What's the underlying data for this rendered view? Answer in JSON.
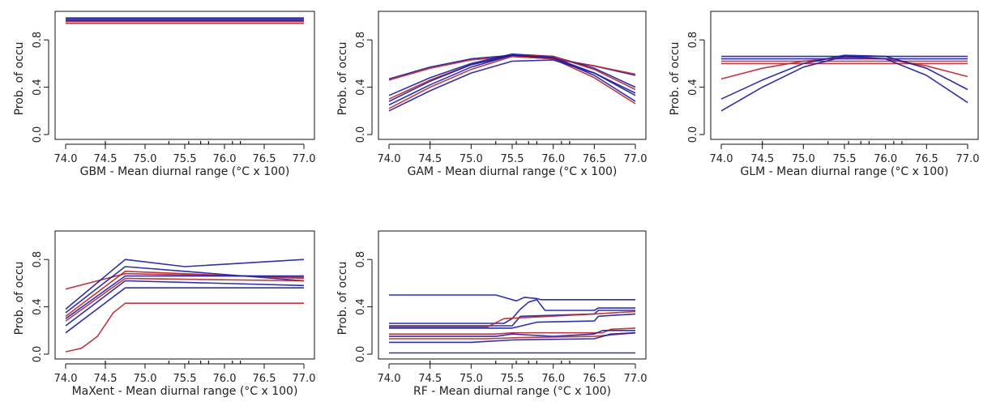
{
  "figure_colors": {
    "blue": "#1a1aa0",
    "red": "#b8242e",
    "axis": "#111111"
  },
  "chart_data": [
    {
      "type": "line",
      "model": "GBM",
      "xlabel": "GBM - Mean diurnal range (°C x 100)",
      "ylabel": "Prob. of occu",
      "xlim": [
        74.0,
        77.0
      ],
      "ylim": [
        0.0,
        1.0
      ],
      "xticks": [
        "74.0",
        "74.5",
        "75.0",
        "75.5",
        "76.0",
        "76.5",
        "77.0"
      ],
      "yticks": [
        "0.0",
        "0.4",
        "0.8"
      ],
      "rug": [
        74.5,
        75.3,
        75.55,
        75.7,
        75.8,
        76.1,
        76.2
      ],
      "series": [
        {
          "color": "red",
          "x": [
            74.0,
            77.0
          ],
          "y": [
            0.94,
            0.94
          ]
        },
        {
          "color": "red",
          "x": [
            74.0,
            77.0
          ],
          "y": [
            0.955,
            0.955
          ]
        },
        {
          "color": "blue",
          "x": [
            74.0,
            77.0
          ],
          "y": [
            0.962,
            0.962
          ]
        },
        {
          "color": "blue",
          "x": [
            74.0,
            77.0
          ],
          "y": [
            0.972,
            0.972
          ]
        },
        {
          "color": "red",
          "x": [
            74.0,
            77.0
          ],
          "y": [
            0.978,
            0.978
          ]
        },
        {
          "color": "blue",
          "x": [
            74.0,
            77.0
          ],
          "y": [
            0.985,
            0.985
          ]
        }
      ]
    },
    {
      "type": "line",
      "model": "GAM",
      "xlabel": "GAM - Mean diurnal range (°C x 100)",
      "ylabel": "Prob. of occu",
      "xlim": [
        74.0,
        77.0
      ],
      "ylim": [
        0.0,
        1.0
      ],
      "xticks": [
        "74.0",
        "74.5",
        "75.0",
        "75.5",
        "76.0",
        "76.5",
        "77.0"
      ],
      "yticks": [
        "0.0",
        "0.4",
        "0.8"
      ],
      "rug": [
        74.5,
        75.3,
        75.55,
        75.7,
        75.8,
        76.1,
        76.2
      ],
      "series": [
        {
          "color": "blue",
          "x": [
            74.0,
            74.5,
            75.0,
            75.5,
            76.0,
            76.5,
            77.0
          ],
          "y": [
            0.47,
            0.57,
            0.64,
            0.67,
            0.64,
            0.58,
            0.5
          ]
        },
        {
          "color": "red",
          "x": [
            74.0,
            74.5,
            75.0,
            75.5,
            76.0,
            76.5,
            77.0
          ],
          "y": [
            0.46,
            0.56,
            0.63,
            0.66,
            0.64,
            0.58,
            0.51
          ]
        },
        {
          "color": "blue",
          "x": [
            74.0,
            74.5,
            75.0,
            75.5,
            76.0,
            76.5,
            77.0
          ],
          "y": [
            0.33,
            0.48,
            0.6,
            0.68,
            0.66,
            0.56,
            0.4
          ]
        },
        {
          "color": "red",
          "x": [
            74.0,
            74.5,
            75.0,
            75.5,
            76.0,
            76.5,
            77.0
          ],
          "y": [
            0.3,
            0.46,
            0.59,
            0.67,
            0.66,
            0.55,
            0.38
          ]
        },
        {
          "color": "blue",
          "x": [
            74.0,
            74.5,
            75.0,
            75.5,
            76.0,
            76.5,
            77.0
          ],
          "y": [
            0.28,
            0.45,
            0.59,
            0.67,
            0.65,
            0.52,
            0.33
          ]
        },
        {
          "color": "blue",
          "x": [
            74.0,
            74.5,
            75.0,
            75.5,
            76.0,
            76.5,
            77.0
          ],
          "y": [
            0.25,
            0.42,
            0.57,
            0.67,
            0.65,
            0.5,
            0.28
          ]
        },
        {
          "color": "red",
          "x": [
            74.0,
            74.5,
            75.0,
            75.5,
            76.0,
            76.5,
            77.0
          ],
          "y": [
            0.22,
            0.4,
            0.55,
            0.66,
            0.64,
            0.48,
            0.26
          ]
        },
        {
          "color": "blue",
          "x": [
            74.0,
            74.5,
            75.0,
            75.5,
            76.0,
            76.5,
            77.0
          ],
          "y": [
            0.2,
            0.37,
            0.52,
            0.62,
            0.63,
            0.52,
            0.35
          ]
        }
      ]
    },
    {
      "type": "line",
      "model": "GLM",
      "xlabel": "GLM - Mean diurnal range (°C x 100)",
      "ylabel": "Prob. of occu",
      "xlim": [
        74.0,
        77.0
      ],
      "ylim": [
        0.0,
        1.0
      ],
      "xticks": [
        "74.0",
        "74.5",
        "75.0",
        "75.5",
        "76.0",
        "76.5",
        "77.0"
      ],
      "yticks": [
        "0.0",
        "0.4",
        "0.8"
      ],
      "rug": [
        74.5,
        75.3,
        75.55,
        75.7,
        75.8,
        76.1,
        76.2
      ],
      "series": [
        {
          "color": "blue",
          "x": [
            74.0,
            77.0
          ],
          "y": [
            0.66,
            0.66
          ]
        },
        {
          "color": "blue",
          "x": [
            74.0,
            77.0
          ],
          "y": [
            0.64,
            0.64
          ]
        },
        {
          "color": "red",
          "x": [
            74.0,
            77.0
          ],
          "y": [
            0.62,
            0.62
          ]
        },
        {
          "color": "red",
          "x": [
            74.0,
            77.0
          ],
          "y": [
            0.6,
            0.6
          ]
        },
        {
          "color": "red",
          "x": [
            74.0,
            74.5,
            75.0,
            75.5,
            76.0,
            76.5,
            77.0
          ],
          "y": [
            0.47,
            0.56,
            0.62,
            0.65,
            0.64,
            0.58,
            0.49
          ]
        },
        {
          "color": "blue",
          "x": [
            74.0,
            74.5,
            75.0,
            75.5,
            76.0,
            76.5,
            77.0
          ],
          "y": [
            0.3,
            0.46,
            0.6,
            0.67,
            0.66,
            0.56,
            0.38
          ]
        },
        {
          "color": "blue",
          "x": [
            74.0,
            74.5,
            75.0,
            75.5,
            76.0,
            76.5,
            77.0
          ],
          "y": [
            0.2,
            0.4,
            0.57,
            0.66,
            0.64,
            0.5,
            0.27
          ]
        }
      ]
    },
    {
      "type": "line",
      "model": "MaXent",
      "xlabel": "MaXent - Mean diurnal range (°C x 100)",
      "ylabel": "Prob. of occu",
      "xlim": [
        74.0,
        77.0
      ],
      "ylim": [
        0.0,
        1.0
      ],
      "xticks": [
        "74.0",
        "74.5",
        "75.0",
        "75.5",
        "76.0",
        "76.5",
        "77.0"
      ],
      "yticks": [
        "0.0",
        "0.4",
        "0.8"
      ],
      "rug": [
        74.5,
        75.3,
        75.55,
        75.7,
        75.8,
        76.1,
        76.2
      ],
      "series": [
        {
          "color": "red",
          "x": [
            74.0,
            74.75,
            77.0
          ],
          "y": [
            0.55,
            0.68,
            0.65
          ]
        },
        {
          "color": "blue",
          "x": [
            74.0,
            74.75,
            75.5,
            77.0
          ],
          "y": [
            0.38,
            0.8,
            0.74,
            0.8
          ]
        },
        {
          "color": "blue",
          "x": [
            74.0,
            74.75,
            75.5,
            77.0
          ],
          "y": [
            0.35,
            0.74,
            0.7,
            0.62
          ]
        },
        {
          "color": "red",
          "x": [
            74.0,
            74.75,
            77.0
          ],
          "y": [
            0.32,
            0.7,
            0.64
          ]
        },
        {
          "color": "blue",
          "x": [
            74.0,
            74.75,
            77.0
          ],
          "y": [
            0.3,
            0.66,
            0.66
          ]
        },
        {
          "color": "red",
          "x": [
            74.0,
            74.75,
            77.0
          ],
          "y": [
            0.28,
            0.64,
            0.62
          ]
        },
        {
          "color": "blue",
          "x": [
            74.0,
            74.75,
            77.0
          ],
          "y": [
            0.24,
            0.62,
            0.58
          ]
        },
        {
          "color": "blue",
          "x": [
            74.0,
            74.75,
            77.0
          ],
          "y": [
            0.18,
            0.56,
            0.56
          ]
        },
        {
          "color": "red",
          "x": [
            74.0,
            74.2,
            74.4,
            74.6,
            74.75,
            77.0
          ],
          "y": [
            0.02,
            0.05,
            0.15,
            0.35,
            0.43,
            0.43
          ]
        }
      ]
    },
    {
      "type": "line",
      "model": "RF",
      "xlabel": "RF - Mean diurnal range (°C x 100)",
      "ylabel": "Prob. of occu",
      "xlim": [
        74.0,
        77.0
      ],
      "ylim": [
        0.0,
        1.0
      ],
      "xticks": [
        "74.0",
        "74.5",
        "75.0",
        "75.5",
        "76.0",
        "76.5",
        "77.0"
      ],
      "yticks": [
        "0.0",
        "0.4",
        "0.8"
      ],
      "rug": [
        74.5,
        75.3,
        75.55,
        75.7,
        75.8,
        76.1,
        76.2
      ],
      "series": [
        {
          "color": "blue",
          "x": [
            74.0,
            75.3,
            75.4,
            75.55,
            75.65,
            75.8,
            75.85,
            77.0
          ],
          "y": [
            0.5,
            0.5,
            0.48,
            0.45,
            0.48,
            0.47,
            0.46,
            0.46
          ]
        },
        {
          "color": "blue",
          "x": [
            74.0,
            75.4,
            75.5,
            75.6,
            75.7,
            75.8,
            75.9,
            76.5,
            76.55,
            77.0
          ],
          "y": [
            0.26,
            0.26,
            0.3,
            0.38,
            0.44,
            0.46,
            0.37,
            0.37,
            0.39,
            0.39
          ]
        },
        {
          "color": "blue",
          "x": [
            74.0,
            75.5,
            75.6,
            76.5,
            76.55,
            77.0
          ],
          "y": [
            0.24,
            0.24,
            0.32,
            0.34,
            0.37,
            0.37
          ]
        },
        {
          "color": "red",
          "x": [
            74.0,
            75.2,
            75.4,
            76.5,
            77.0
          ],
          "y": [
            0.23,
            0.23,
            0.3,
            0.34,
            0.36
          ]
        },
        {
          "color": "blue",
          "x": [
            74.0,
            75.5,
            75.8,
            76.5,
            76.55,
            77.0
          ],
          "y": [
            0.22,
            0.22,
            0.27,
            0.28,
            0.32,
            0.34
          ]
        },
        {
          "color": "red",
          "x": [
            74.0,
            75.3,
            75.5,
            76.6,
            76.7,
            77.0
          ],
          "y": [
            0.17,
            0.17,
            0.18,
            0.18,
            0.21,
            0.22
          ]
        },
        {
          "color": "blue",
          "x": [
            74.0,
            75.3,
            75.5,
            76.0,
            76.5,
            76.6,
            77.0
          ],
          "y": [
            0.15,
            0.15,
            0.17,
            0.15,
            0.17,
            0.2,
            0.2
          ]
        },
        {
          "color": "red",
          "x": [
            74.0,
            75.2,
            75.6,
            76.5,
            77.0
          ],
          "y": [
            0.13,
            0.13,
            0.14,
            0.15,
            0.18
          ]
        },
        {
          "color": "blue",
          "x": [
            74.0,
            75.0,
            75.5,
            76.5,
            76.7,
            77.0
          ],
          "y": [
            0.1,
            0.1,
            0.12,
            0.13,
            0.17,
            0.18
          ]
        },
        {
          "color": "blue",
          "x": [
            74.0,
            77.0
          ],
          "y": [
            0.01,
            0.01
          ]
        }
      ]
    }
  ]
}
